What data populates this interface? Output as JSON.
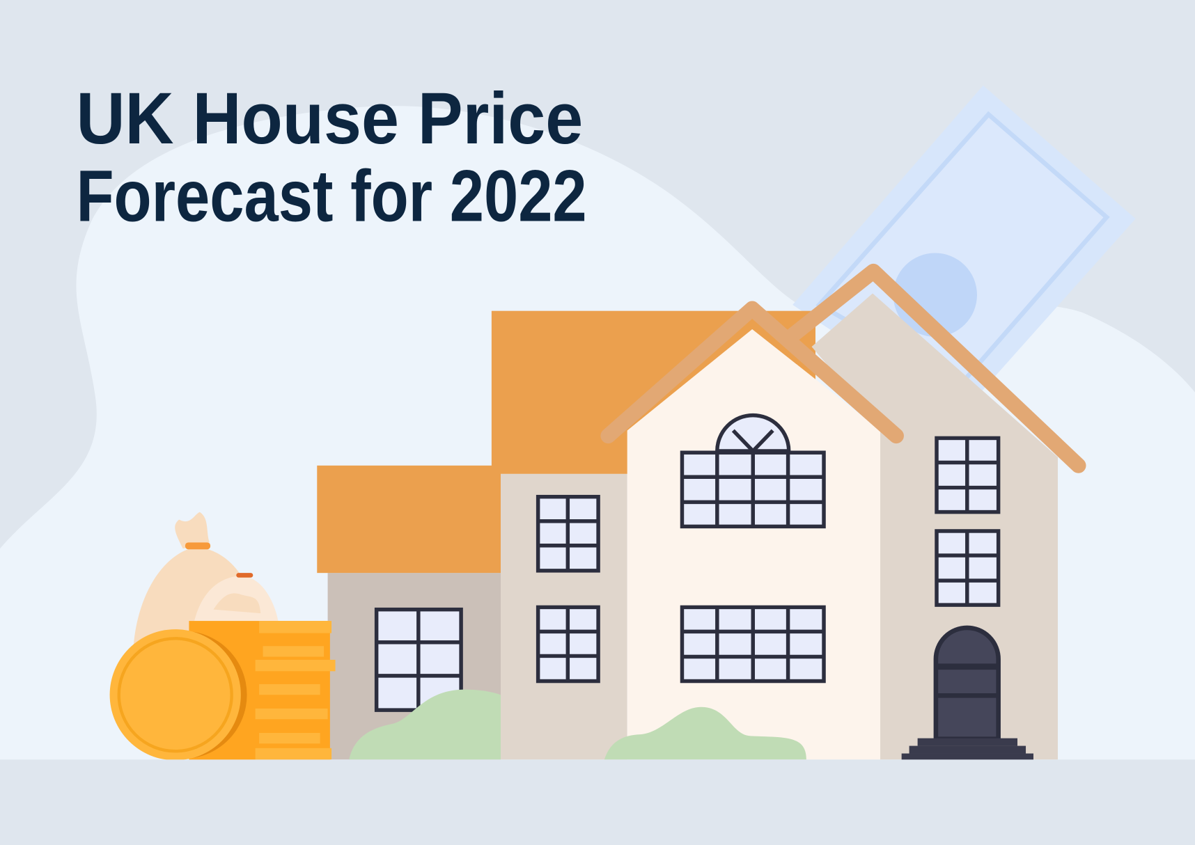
{
  "title": {
    "line1": "UK House Price",
    "line2": "Forecast for 2022"
  },
  "colors": {
    "background": "#dfe6ee",
    "blob": "#edf4fb",
    "title": "#0d2640",
    "roof_orange": "#eba04e",
    "roof_trim": "#e2a874",
    "wall_beige": "#e0d6cc",
    "wall_cream": "#fdf4ec",
    "window_frame": "#2c2e3e",
    "coin": "#ffb63c",
    "bush": "#c0dcb5",
    "banknote": "#d7e6fb"
  },
  "icons": [
    "banknote-icon",
    "house-icon",
    "coin-stack-icon",
    "money-bag-icon"
  ]
}
